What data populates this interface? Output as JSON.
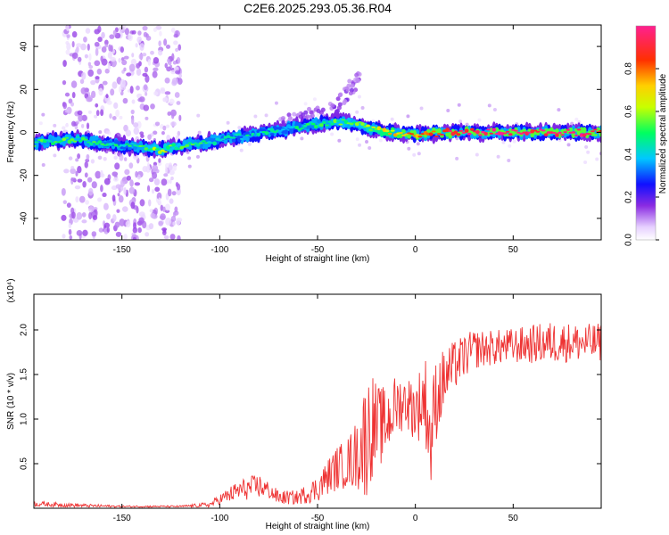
{
  "page": {
    "title": "C2E6.2025.293.05.36.R04"
  },
  "chart_data": [
    {
      "type": "heatmap",
      "title": "C2E6.2025.293.05.36.R04",
      "xlabel": "Height of straight line (km)",
      "ylabel": "Frequency (Hz)",
      "xlim": [
        -195,
        95
      ],
      "ylim": [
        -50,
        50
      ],
      "xticks": [
        -150,
        -100,
        -50,
        0,
        50
      ],
      "yticks": [
        -40,
        -20,
        0,
        20,
        40
      ],
      "colorbar": {
        "label": "Normalized spectral amplitude",
        "range": [
          0,
          1
        ],
        "ticks": [
          0.0,
          0.2,
          0.4,
          0.6,
          0.8
        ]
      },
      "ridge": {
        "description_points_x_km": [
          -195,
          -175,
          -150,
          -130,
          -110,
          -90,
          -70,
          -50,
          -40,
          -30,
          -20,
          -10,
          0,
          20,
          40,
          60,
          80,
          95
        ],
        "frequency_hz": [
          -5,
          -3,
          -6,
          -8,
          -5,
          -2,
          1,
          4,
          5,
          4,
          1,
          0,
          -1,
          0,
          0,
          0,
          0,
          0
        ],
        "amplitude": [
          0.45,
          0.5,
          0.4,
          0.55,
          0.45,
          0.4,
          0.4,
          0.45,
          0.5,
          0.5,
          0.6,
          0.7,
          0.75,
          0.9,
          0.95,
          0.92,
          0.95,
          0.9
        ]
      },
      "scatter_region_km": [
        -180,
        -120
      ],
      "rising_streak": {
        "x_km": [
          -70,
          -40,
          -28
        ],
        "frequency_hz": [
          3,
          12,
          27
        ]
      }
    },
    {
      "type": "line",
      "xlabel": "Height of straight line (km)",
      "ylabel": "SNR (10 * v/v)",
      "yscale_label": "(x10⁴)",
      "xlim": [
        -195,
        95
      ],
      "ylim": [
        0,
        2.4
      ],
      "xticks": [
        -150,
        -100,
        -50,
        0,
        50
      ],
      "yticks": [
        0.5,
        1.0,
        1.5,
        2.0
      ],
      "color": "#ee3333",
      "series": [
        {
          "name": "SNR",
          "x": [
            -195,
            -170,
            -150,
            -120,
            -105,
            -100,
            -90,
            -80,
            -75,
            -70,
            -60,
            -50,
            -45,
            -40,
            -35,
            -30,
            -25,
            -22,
            -20,
            -15,
            -10,
            -5,
            0,
            5,
            8,
            10,
            15,
            20,
            25,
            30,
            40,
            50,
            60,
            70,
            80,
            90,
            95
          ],
          "mean": [
            0.05,
            0.03,
            0.02,
            0.02,
            0.04,
            0.1,
            0.2,
            0.25,
            0.2,
            0.12,
            0.12,
            0.22,
            0.35,
            0.45,
            0.5,
            0.6,
            0.8,
            0.95,
            0.9,
            0.95,
            1.15,
            1.2,
            1.1,
            1.25,
            0.7,
            1.2,
            1.45,
            1.6,
            1.7,
            1.78,
            1.8,
            1.82,
            1.84,
            1.86,
            1.86,
            1.85,
            1.86
          ],
          "noise": [
            0.03,
            0.02,
            0.01,
            0.01,
            0.03,
            0.06,
            0.12,
            0.14,
            0.1,
            0.08,
            0.08,
            0.15,
            0.2,
            0.25,
            0.28,
            0.4,
            0.7,
            0.6,
            0.5,
            0.4,
            0.35,
            0.3,
            0.35,
            0.5,
            0.5,
            0.5,
            0.35,
            0.28,
            0.25,
            0.22,
            0.2,
            0.2,
            0.22,
            0.24,
            0.22,
            0.22,
            0.22
          ]
        }
      ]
    }
  ]
}
